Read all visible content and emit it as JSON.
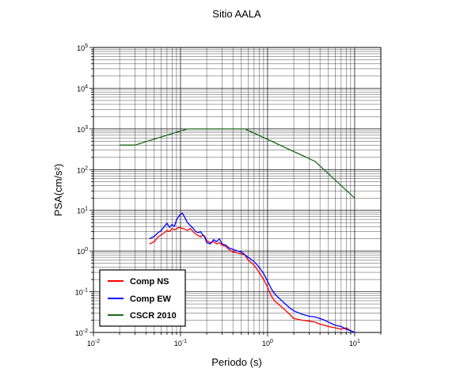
{
  "chart_data": {
    "type": "line",
    "title": "Sitio AALA",
    "xlabel": "Periodo (s)",
    "ylabel": "PSA(cm/s²)",
    "xscale": "log",
    "yscale": "log",
    "xlim": [
      0.01,
      20
    ],
    "ylim": [
      0.01,
      100000
    ],
    "x_ticks": [
      {
        "value": 0.01,
        "base": "10",
        "exp": "-2"
      },
      {
        "value": 0.1,
        "base": "10",
        "exp": "-1"
      },
      {
        "value": 1,
        "base": "10",
        "exp": "0"
      },
      {
        "value": 10,
        "base": "10",
        "exp": "1"
      }
    ],
    "y_ticks": [
      {
        "value": 0.01,
        "base": "10",
        "exp": "-2"
      },
      {
        "value": 0.1,
        "base": "10",
        "exp": "-1"
      },
      {
        "value": 1,
        "base": "10",
        "exp": "0"
      },
      {
        "value": 10,
        "base": "10",
        "exp": "1"
      },
      {
        "value": 100,
        "base": "10",
        "exp": "2"
      },
      {
        "value": 1000,
        "base": "10",
        "exp": "3"
      },
      {
        "value": 10000,
        "base": "10",
        "exp": "4"
      },
      {
        "value": 100000,
        "base": "10",
        "exp": "5"
      }
    ],
    "grid": true,
    "legend_position": "bottom-left",
    "series": [
      {
        "name": "Comp NS",
        "color": "#ff0000",
        "x": [
          0.044,
          0.05,
          0.055,
          0.06,
          0.065,
          0.07,
          0.075,
          0.08,
          0.085,
          0.09,
          0.095,
          0.1,
          0.11,
          0.12,
          0.13,
          0.14,
          0.15,
          0.16,
          0.17,
          0.18,
          0.19,
          0.2,
          0.22,
          0.24,
          0.26,
          0.28,
          0.3,
          0.33,
          0.36,
          0.4,
          0.45,
          0.5,
          0.55,
          0.6,
          0.7,
          0.8,
          0.9,
          1.0,
          1.1,
          1.2,
          1.4,
          1.6,
          1.8,
          2.0,
          2.5,
          3.0,
          3.5,
          4.0,
          4.5,
          5.0,
          6.0,
          7.0,
          8.0,
          9.0,
          10.0
        ],
        "y": [
          1.5,
          1.7,
          2.2,
          2.5,
          2.8,
          3.2,
          3.0,
          3.6,
          3.3,
          3.5,
          3.8,
          3.7,
          3.5,
          3.2,
          3.6,
          3.0,
          2.6,
          2.4,
          2.2,
          2.5,
          2.3,
          1.8,
          1.6,
          1.7,
          1.5,
          1.6,
          1.4,
          1.3,
          1.1,
          0.95,
          0.9,
          0.85,
          0.8,
          0.6,
          0.45,
          0.3,
          0.2,
          0.13,
          0.08,
          0.06,
          0.045,
          0.035,
          0.028,
          0.022,
          0.02,
          0.019,
          0.018,
          0.016,
          0.015,
          0.014,
          0.013,
          0.012,
          0.013,
          0.011,
          0.01
        ]
      },
      {
        "name": "Comp EW",
        "color": "#0000ff",
        "x": [
          0.044,
          0.05,
          0.055,
          0.06,
          0.065,
          0.07,
          0.075,
          0.08,
          0.085,
          0.09,
          0.095,
          0.1,
          0.105,
          0.11,
          0.12,
          0.13,
          0.14,
          0.15,
          0.16,
          0.17,
          0.18,
          0.19,
          0.2,
          0.22,
          0.24,
          0.26,
          0.28,
          0.3,
          0.33,
          0.36,
          0.4,
          0.45,
          0.5,
          0.55,
          0.6,
          0.7,
          0.8,
          0.9,
          1.0,
          1.1,
          1.2,
          1.4,
          1.6,
          1.8,
          2.0,
          2.5,
          3.0,
          3.5,
          4.0,
          4.5,
          5.0,
          6.0,
          7.0,
          8.0,
          9.0,
          10.0
        ],
        "y": [
          2.0,
          2.3,
          2.8,
          3.2,
          4.0,
          4.8,
          3.8,
          4.5,
          4.0,
          5.8,
          7.0,
          8.0,
          8.5,
          7.2,
          5.0,
          4.2,
          3.6,
          3.0,
          2.8,
          3.0,
          2.5,
          2.2,
          1.6,
          1.5,
          1.9,
          1.7,
          2.0,
          1.5,
          1.4,
          1.2,
          1.1,
          1.0,
          0.95,
          0.8,
          0.7,
          0.55,
          0.4,
          0.28,
          0.18,
          0.12,
          0.09,
          0.065,
          0.05,
          0.04,
          0.034,
          0.028,
          0.025,
          0.024,
          0.022,
          0.02,
          0.018,
          0.015,
          0.014,
          0.012,
          0.011,
          0.01
        ]
      },
      {
        "name": "CSCR 2010",
        "color": "#1a6b1a",
        "x": [
          0.02,
          0.03,
          0.12,
          0.55,
          3.5,
          10
        ],
        "y": [
          400,
          400,
          1000,
          1000,
          160,
          20
        ]
      }
    ]
  }
}
